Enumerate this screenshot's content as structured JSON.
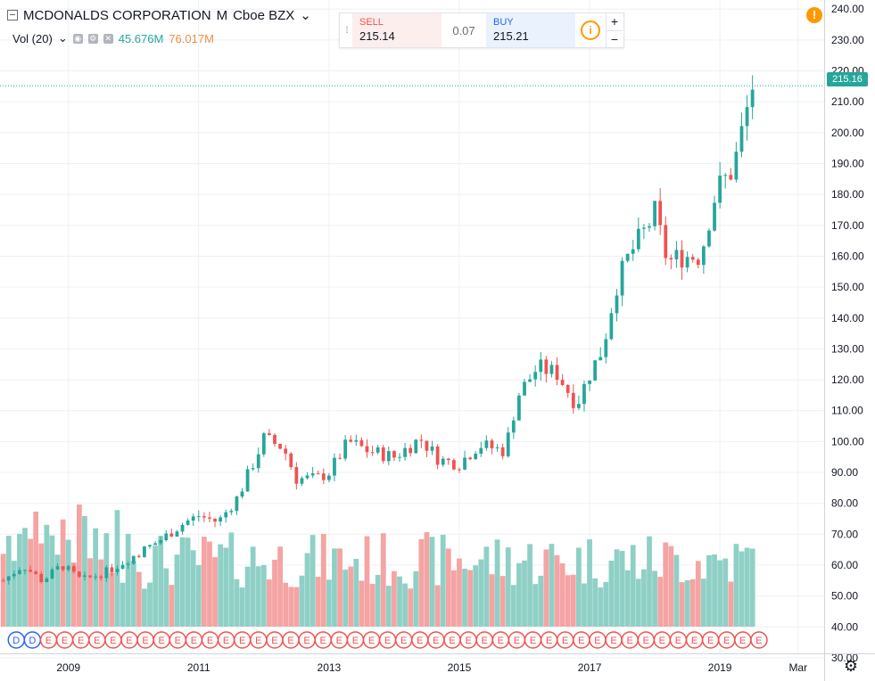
{
  "header": {
    "symbol": "MCDONALDS CORPORATION",
    "interval": "M",
    "exchange": "Cboe BZX",
    "dropdown_arrow": "⌄"
  },
  "volume_legend": {
    "label": "Vol (20)",
    "value_a": "45.676M",
    "value_b": "76.017M"
  },
  "trade_panel": {
    "sell_label": "SELL",
    "sell_price": "215.14",
    "spread": "0.07",
    "buy_label": "BUY",
    "buy_price": "215.21",
    "zoom_in": "+",
    "zoom_out": "−",
    "info_icon": "i"
  },
  "alert_icon": "!",
  "price_badge": "215.16",
  "settings_icon": "⚙",
  "colors": {
    "up": "#26a69a",
    "down": "#ef5350",
    "vol_up": "#8fd0c6",
    "vol_down": "#f4a4a3",
    "grid": "#eef0f3"
  },
  "chart_data": {
    "type": "candlestick",
    "title": "MCDONALDS CORPORATION · M · Cboe BZX",
    "y_axis_ticks": [
      "240.00",
      "230.00",
      "220.00",
      "210.00",
      "200.00",
      "190.00",
      "180.00",
      "170.00",
      "160.00",
      "150.00",
      "140.00",
      "130.00",
      "120.00",
      "110.00",
      "100.00",
      "90.00",
      "80.00",
      "70.00",
      "60.00",
      "50.00",
      "40.00",
      "30.00"
    ],
    "ylim": [
      30,
      241.5
    ],
    "x_axis_ticks": [
      "2009",
      "2011",
      "2013",
      "2015",
      "2017",
      "2019",
      "Mar"
    ],
    "x_tick_years": [
      2009,
      2011,
      2013,
      2015,
      2017,
      2019,
      2020.2
    ],
    "xlim": [
      2007.95,
      2020.6
    ],
    "current_price": 215.16,
    "monthly_close_anchors": [
      [
        2008.0,
        55
      ],
      [
        2008.3,
        60
      ],
      [
        2008.6,
        55
      ],
      [
        2008.9,
        60
      ],
      [
        2009.2,
        55
      ],
      [
        2009.6,
        58
      ],
      [
        2010.0,
        63
      ],
      [
        2010.4,
        68
      ],
      [
        2010.8,
        74
      ],
      [
        2011.0,
        76
      ],
      [
        2011.3,
        74
      ],
      [
        2011.6,
        82
      ],
      [
        2011.9,
        96
      ],
      [
        2012.0,
        101
      ],
      [
        2012.3,
        98
      ],
      [
        2012.5,
        88
      ],
      [
        2012.8,
        88
      ],
      [
        2013.0,
        90
      ],
      [
        2013.3,
        100
      ],
      [
        2013.6,
        97
      ],
      [
        2014.0,
        95
      ],
      [
        2014.4,
        101
      ],
      [
        2014.7,
        94
      ],
      [
        2015.0,
        93
      ],
      [
        2015.3,
        99
      ],
      [
        2015.7,
        97
      ],
      [
        2015.9,
        115
      ],
      [
        2016.2,
        124
      ],
      [
        2016.5,
        122
      ],
      [
        2016.8,
        112
      ],
      [
        2017.0,
        122
      ],
      [
        2017.2,
        130
      ],
      [
        2017.4,
        150
      ],
      [
        2017.6,
        160
      ],
      [
        2017.9,
        170
      ],
      [
        2018.0,
        174
      ],
      [
        2018.2,
        158
      ],
      [
        2018.4,
        160
      ],
      [
        2018.7,
        160
      ],
      [
        2018.9,
        178
      ],
      [
        2019.0,
        183
      ],
      [
        2019.2,
        188
      ],
      [
        2019.5,
        215
      ]
    ],
    "volume_ticks_note": "Volume histogram (millions) drawn beneath price",
    "volume_range_m": [
      0,
      80
    ],
    "event_markers": [
      "D",
      "D",
      "E",
      "E",
      "E",
      "E",
      "E",
      "E",
      "E",
      "E",
      "E",
      "E",
      "E",
      "E",
      "E",
      "E",
      "E",
      "E",
      "E",
      "E",
      "E",
      "E",
      "E",
      "E",
      "E",
      "E",
      "E",
      "E",
      "E",
      "E",
      "E",
      "E",
      "E",
      "E",
      "E",
      "E",
      "E",
      "E",
      "E",
      "E",
      "E",
      "E",
      "E",
      "E",
      "E",
      "E",
      "E"
    ]
  }
}
